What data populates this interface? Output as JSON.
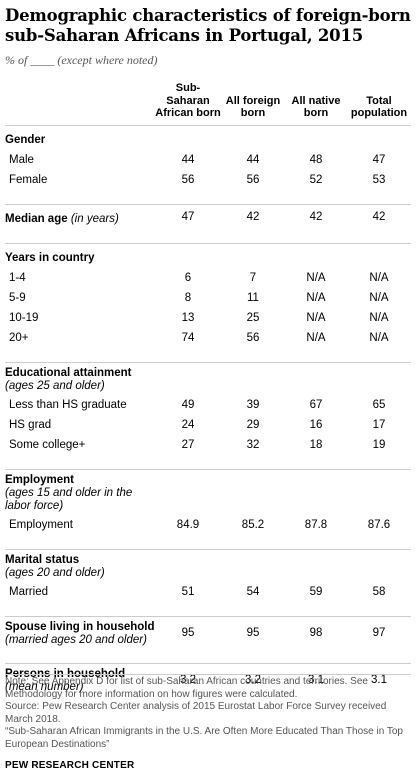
{
  "title": "Demographic characteristics of foreign-born sub-Saharan Africans in Portugal, 2015",
  "subtitle": "% of ____ (except where noted)",
  "chart_data": {
    "type": "table",
    "columns": [
      "Sub-Saharan African born",
      "All foreign born",
      "All native born",
      "Total population"
    ],
    "sections": [
      {
        "label": "Gender",
        "qualifier": "",
        "rows": [
          {
            "label": "Male",
            "values": [
              "44",
              "44",
              "48",
              "47"
            ]
          },
          {
            "label": "Female",
            "values": [
              "56",
              "56",
              "52",
              "53"
            ]
          }
        ]
      },
      {
        "label": "Median age",
        "qualifier": "(in years)",
        "values": [
          "47",
          "42",
          "42",
          "42"
        ],
        "rows": []
      },
      {
        "label": "Years in country",
        "qualifier": "",
        "rows": [
          {
            "label": "1-4",
            "values": [
              "6",
              "7",
              "N/A",
              "N/A"
            ]
          },
          {
            "label": "5-9",
            "values": [
              "8",
              "11",
              "N/A",
              "N/A"
            ]
          },
          {
            "label": "10-19",
            "values": [
              "13",
              "25",
              "N/A",
              "N/A"
            ]
          },
          {
            "label": "20+",
            "values": [
              "74",
              "56",
              "N/A",
              "N/A"
            ]
          }
        ]
      },
      {
        "label": "Educational attainment",
        "qualifier": "(ages 25 and older)",
        "rows": [
          {
            "label": "Less than HS graduate",
            "values": [
              "49",
              "39",
              "67",
              "65"
            ]
          },
          {
            "label": "HS grad",
            "values": [
              "24",
              "29",
              "16",
              "17"
            ]
          },
          {
            "label": "Some college+",
            "values": [
              "27",
              "32",
              "18",
              "19"
            ]
          }
        ]
      },
      {
        "label": "Employment",
        "qualifier": "(ages 15 and older  in the labor force)",
        "rows": [
          {
            "label": "Employment",
            "values": [
              "84.9",
              "85.2",
              "87.8",
              "87.6"
            ]
          }
        ]
      },
      {
        "label": "Marital status",
        "qualifier": "(ages 20 and older)",
        "rows": [
          {
            "label": "Married",
            "values": [
              "51",
              "54",
              "59",
              "58"
            ]
          }
        ]
      },
      {
        "label": "Spouse living in household",
        "qualifier": "(married ages 20 and older)",
        "values": [
          "95",
          "95",
          "98",
          "97"
        ],
        "rows": []
      },
      {
        "label": "Persons in household",
        "qualifier": "(mean number)",
        "values": [
          "3.2",
          "3.2",
          "3.1",
          "3.1"
        ],
        "rows": []
      }
    ]
  },
  "notes": {
    "note": "Note: See Appendix D for list of sub-Saharan African countries and territories. See Methodology for more information on how figures were calculated.",
    "source": "Source: Pew Research Center analysis of 2015 Eurostat Labor Force Survey received March 2018.",
    "report": "“Sub-Saharan African Immigrants in the U.S. Are Often More Educated Than Those in Top European Destinations”"
  },
  "brand": "PEW RESEARCH CENTER"
}
